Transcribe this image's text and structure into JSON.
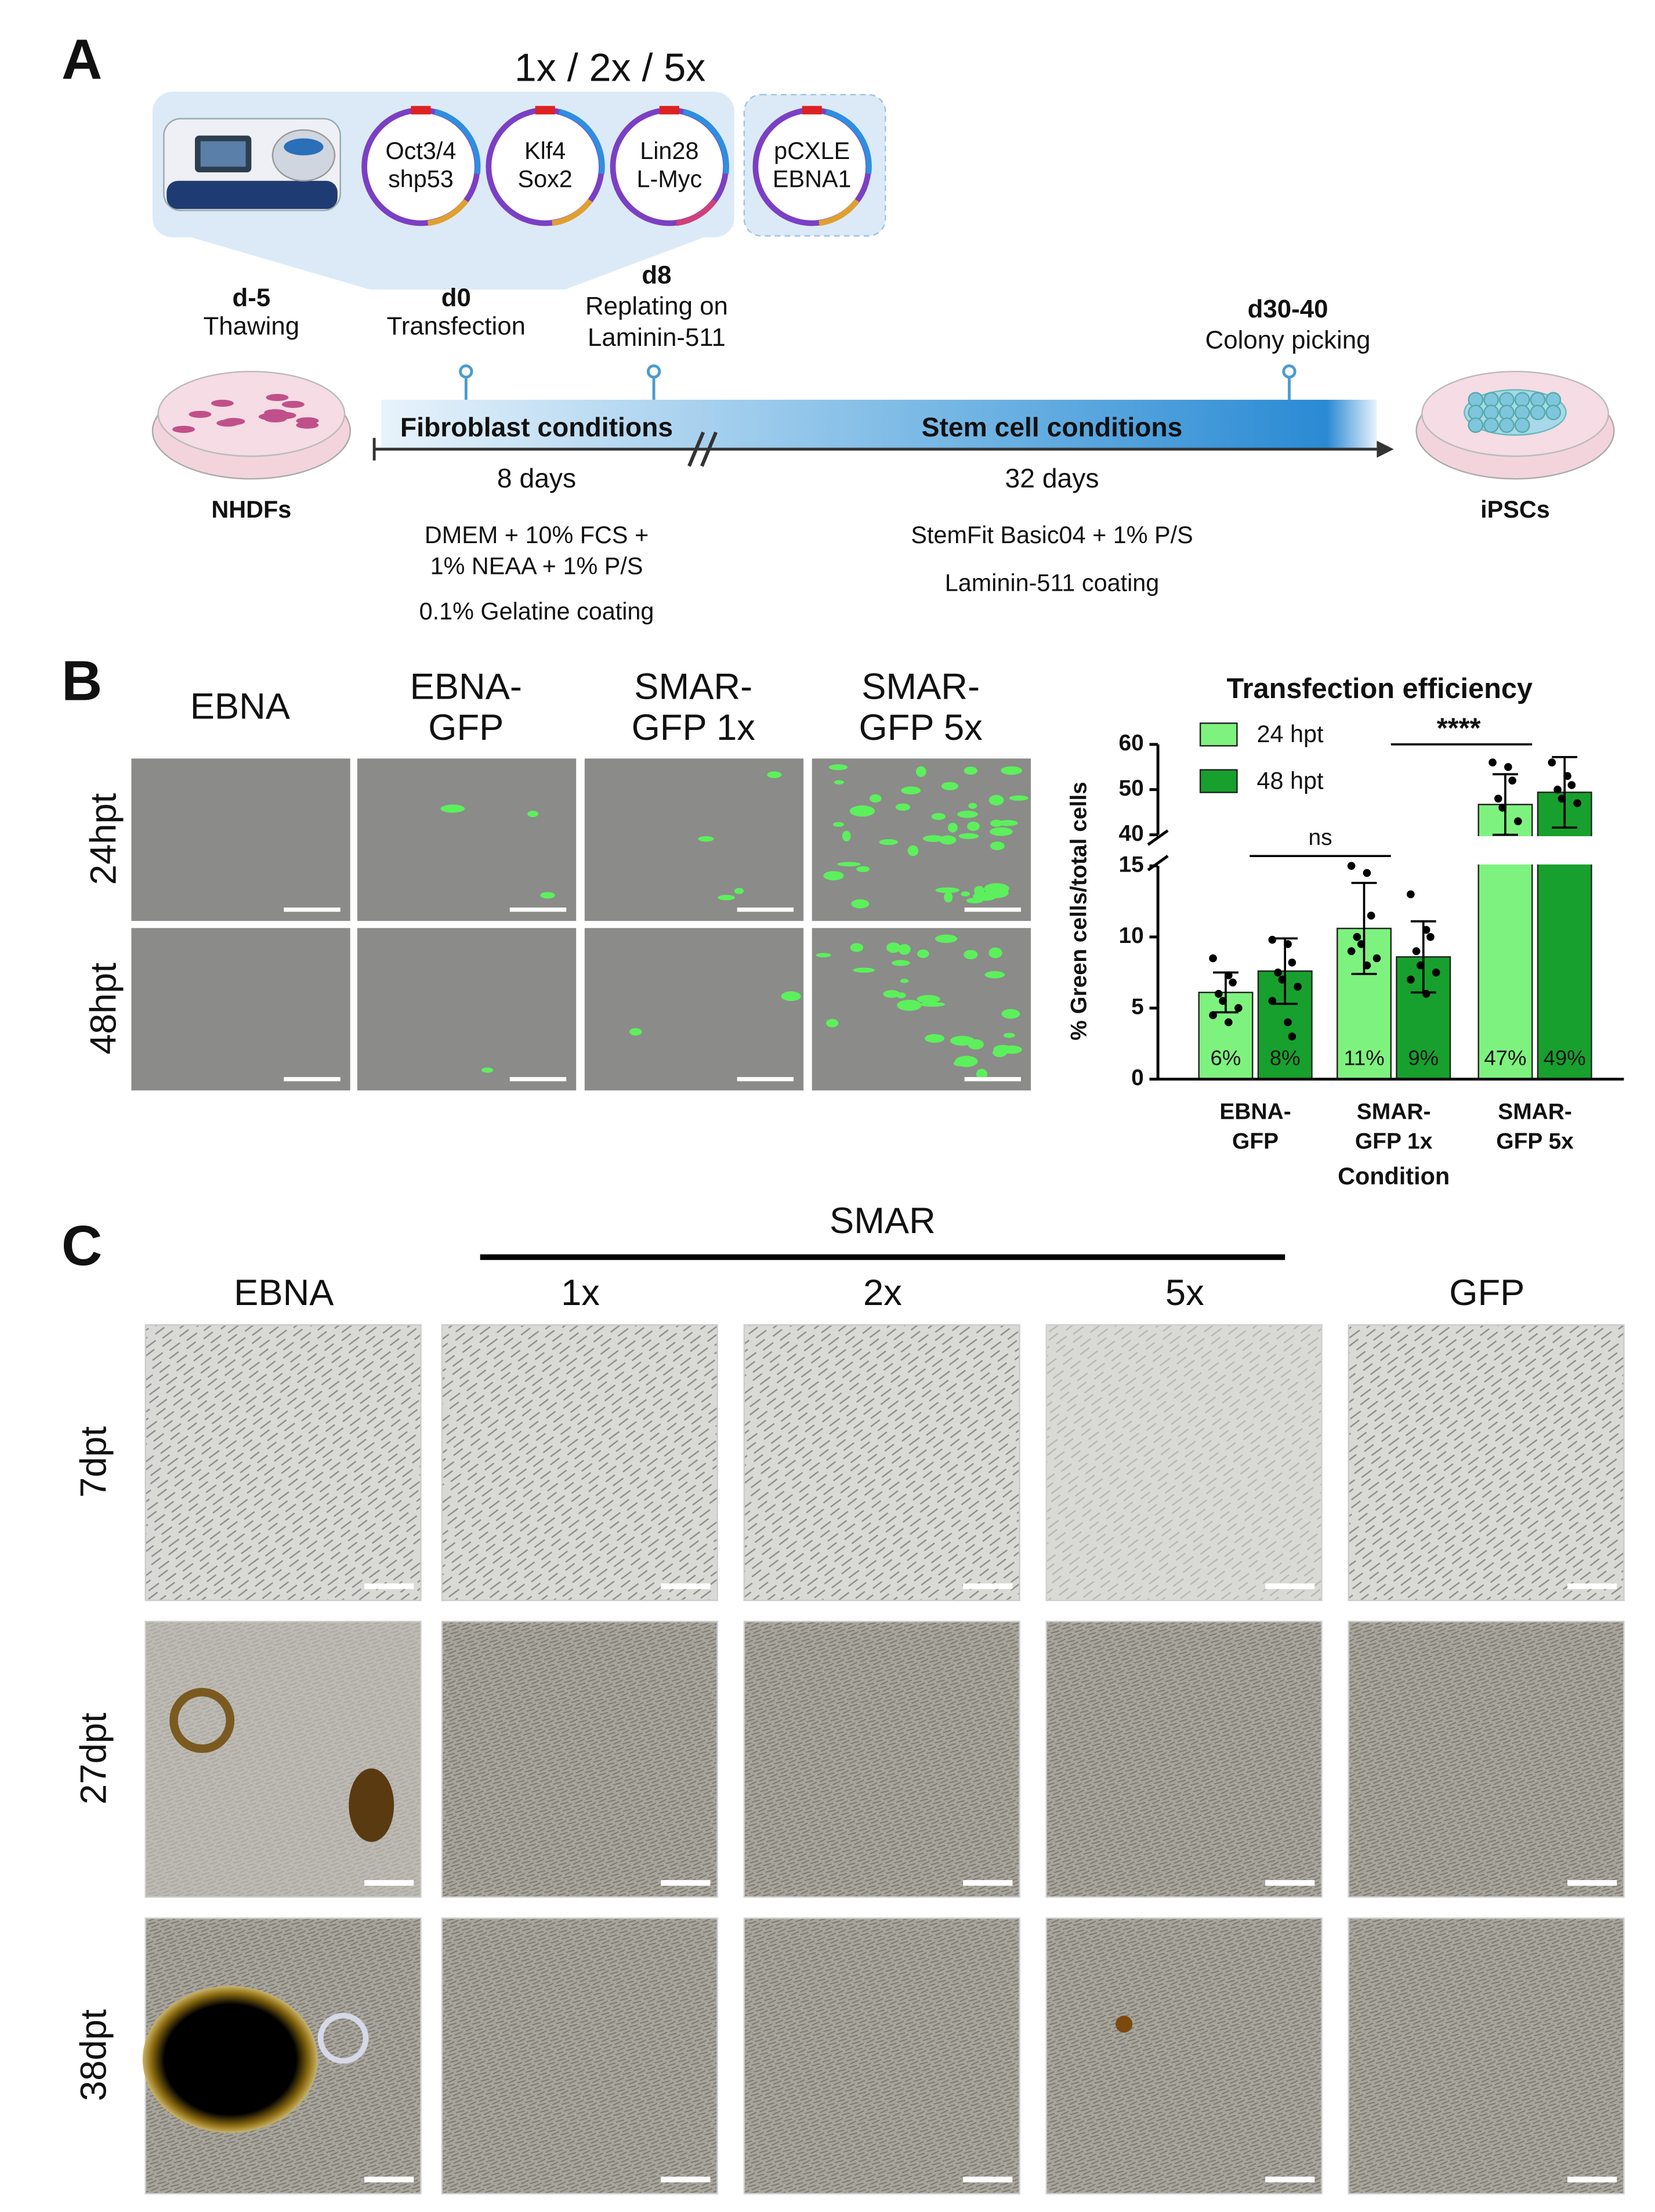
{
  "panel_a": {
    "label": "A",
    "multiplier": "1x / 2x / 5x",
    "plasmids": [
      [
        "Oct3/4",
        "shp53"
      ],
      [
        "Klf4",
        "Sox2"
      ],
      [
        "Lin28",
        "L-Myc"
      ],
      [
        "pCXLE",
        "EBNA1"
      ]
    ],
    "events": [
      {
        "day": "d-5",
        "text": [
          "Thawing"
        ]
      },
      {
        "day": "d0",
        "text": [
          "Transfection"
        ]
      },
      {
        "day": "d8",
        "text": [
          "Replating on",
          "Laminin-511"
        ]
      },
      {
        "day": "d30-40",
        "text": [
          "Colony picking"
        ]
      }
    ],
    "phases": [
      {
        "name": "Fibroblast conditions",
        "duration": "8 days",
        "media": [
          "DMEM + 10% FCS +",
          "1% NEAA + 1% P/S",
          "0.1% Gelatine coating"
        ]
      },
      {
        "name": "Stem cell conditions",
        "duration": "32 days",
        "media": [
          "StemFit Basic04 + 1% P/S",
          "Laminin-511 coating"
        ]
      }
    ],
    "start_cells": "NHDFs",
    "end_cells": "iPSCs"
  },
  "panel_b": {
    "label": "B",
    "columns": [
      [
        "EBNA"
      ],
      [
        "EBNA-",
        "GFP"
      ],
      [
        "SMAR-",
        "GFP 1x"
      ],
      [
        "SMAR-",
        "GFP 5x"
      ]
    ],
    "rows": [
      "24hpt",
      "48hpt"
    ]
  },
  "chart_data": {
    "type": "bar",
    "title": "Transfection efficiency",
    "xlabel": "Condition",
    "ylabel": "% Green cells/total cells",
    "categories": [
      [
        "EBNA-",
        "GFP"
      ],
      [
        "SMAR-",
        "GFP 1x"
      ],
      [
        "SMAR-",
        "GFP 5x"
      ]
    ],
    "series": [
      {
        "name": "24 hpt",
        "color": "#7ef27e",
        "values": [
          6.1,
          10.6,
          46.7
        ],
        "value_labels": [
          "6%",
          "11%",
          "47%"
        ],
        "errors": [
          1.4,
          3.2,
          6.7
        ],
        "points": [
          [
            8.5,
            7.3,
            6.8,
            6,
            5.5,
            5,
            4.5,
            4
          ],
          [
            15,
            14.5,
            11.5,
            10,
            9.5,
            8.5,
            9,
            8
          ],
          [
            56,
            55,
            52,
            48,
            46,
            43
          ]
        ]
      },
      {
        "name": "48 hpt",
        "color": "#17a02d",
        "values": [
          7.6,
          8.6,
          49.4
        ],
        "value_labels": [
          "8%",
          "9%",
          "49%"
        ],
        "errors": [
          2.3,
          2.5,
          7.8
        ],
        "points": [
          [
            9.8,
            9.5,
            8.2,
            7.5,
            7,
            6.5,
            5.5,
            4,
            3
          ],
          [
            13,
            10.5,
            10,
            9,
            8,
            7.5,
            7,
            6
          ],
          [
            56,
            53,
            51,
            50,
            48,
            47
          ]
        ]
      }
    ],
    "ylim": [
      0,
      60
    ],
    "ybreak": [
      15,
      40
    ],
    "yticks": [
      0,
      5,
      10,
      15,
      40,
      50,
      60
    ],
    "annotations": [
      "ns",
      "****"
    ]
  },
  "panel_c": {
    "label": "C",
    "group": "SMAR",
    "columns": [
      "EBNA",
      "1x",
      "2x",
      "5x",
      "GFP"
    ],
    "rows": [
      "7dpt",
      "27dpt",
      "38dpt"
    ]
  }
}
